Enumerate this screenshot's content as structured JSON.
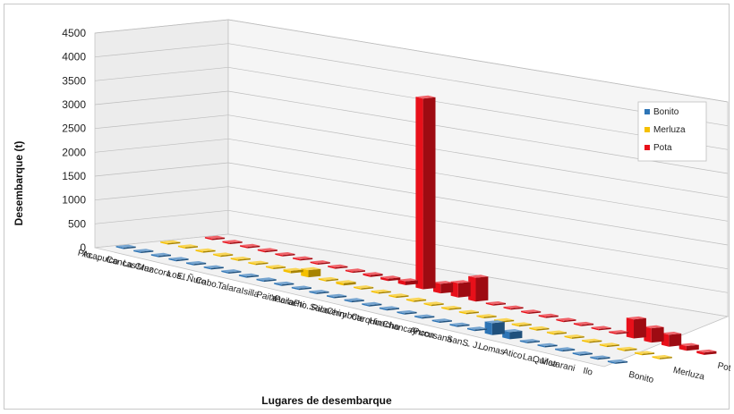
{
  "chart_data": {
    "type": "bar",
    "variant": "3d-column",
    "title": "",
    "ylabel": "Desembarque (t)",
    "xlabel": "Lugares de desembarque",
    "ylim": [
      0,
      4500
    ],
    "yticks": [
      0,
      500,
      1000,
      1500,
      2000,
      2500,
      3000,
      3500,
      4000,
      4500
    ],
    "grid": true,
    "legend_position": "right",
    "categories": [
      "Pto....",
      "Acapulco",
      "Cancas",
      "La Cruz",
      "Mancora",
      "Los...",
      "El Ñuro",
      "Cabo...",
      "Talara",
      "Isilla",
      "Paita",
      "Yacila",
      "Parachi...",
      "Pto. Rico",
      "Salaverry",
      "Chimbote",
      "Carquin",
      "Huacho",
      "Chancay",
      "Ancon",
      "Pucusana",
      "San...",
      "S. J....",
      "Lomas",
      "Atico",
      "La...",
      "Quilca",
      "Matarani",
      "Ilo"
    ],
    "series": [
      {
        "name": "Bonito",
        "color": "#2e75b6",
        "values": [
          10,
          10,
          10,
          10,
          10,
          10,
          10,
          10,
          10,
          10,
          10,
          10,
          10,
          10,
          10,
          10,
          10,
          10,
          10,
          10,
          30,
          250,
          150,
          10,
          10,
          10,
          10,
          10,
          10
        ]
      },
      {
        "name": "Merluza",
        "color": "#f5c000",
        "values": [
          10,
          10,
          10,
          10,
          10,
          10,
          10,
          50,
          150,
          10,
          50,
          10,
          10,
          10,
          10,
          10,
          10,
          10,
          10,
          10,
          10,
          10,
          10,
          10,
          10,
          10,
          10,
          10,
          10
        ]
      },
      {
        "name": "Pota",
        "color": "#e8101a",
        "values": [
          10,
          10,
          10,
          10,
          10,
          10,
          10,
          10,
          10,
          40,
          50,
          80,
          4000,
          200,
          300,
          500,
          10,
          10,
          10,
          10,
          10,
          10,
          10,
          10,
          400,
          300,
          250,
          100,
          50
        ]
      }
    ]
  }
}
